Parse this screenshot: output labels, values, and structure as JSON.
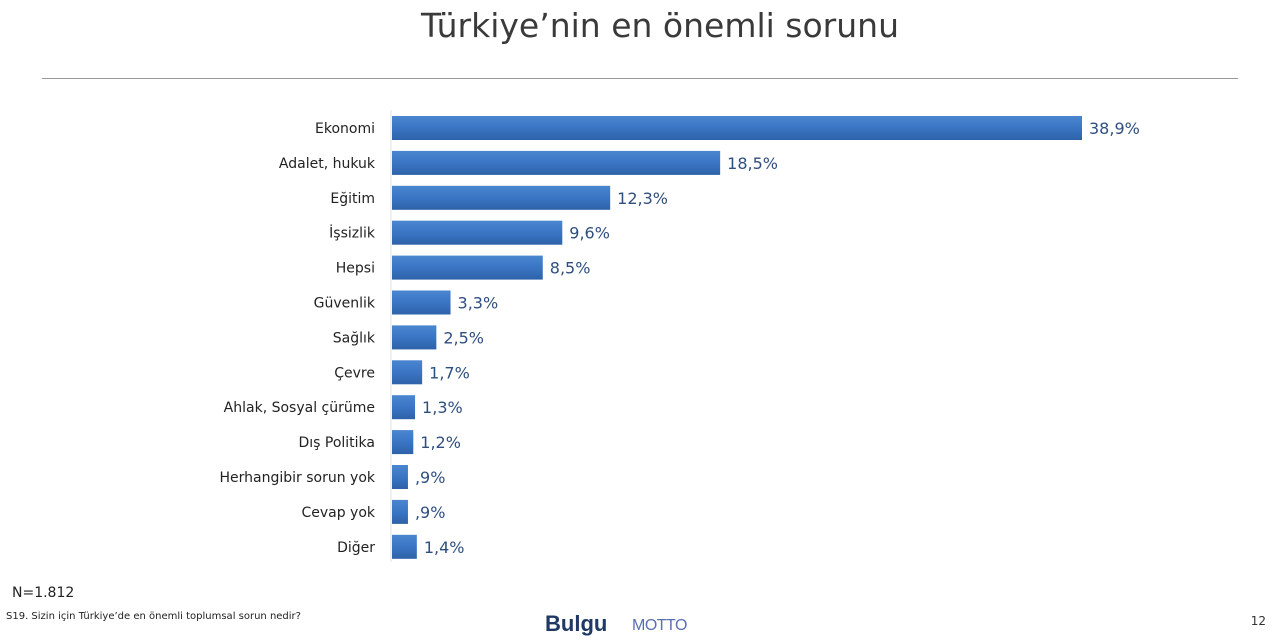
{
  "chart_data": {
    "type": "bar",
    "orientation": "horizontal",
    "title": "Türkiye’nin en önemli sorunu",
    "categories": [
      "Ekonomi",
      "Adalet, hukuk",
      "Eğitim",
      "İşsizlik",
      "Hepsi",
      "Güvenlik",
      "Sağlık",
      "Çevre",
      "Ahlak, Sosyal çürüme",
      "Dış Politika",
      "Herhangibir sorun yok",
      "Cevap yok",
      "Diğer"
    ],
    "values": [
      38.9,
      18.5,
      12.3,
      9.6,
      8.5,
      3.3,
      2.5,
      1.7,
      1.3,
      1.2,
      0.9,
      0.9,
      1.4
    ],
    "data_labels": [
      "38,9%",
      "18,5%",
      "12,3%",
      "9,6%",
      "8,5%",
      "3,3%",
      "2,5%",
      "1,7%",
      "1,3%",
      "1,2%",
      ",9%",
      ",9%",
      "1,4%"
    ],
    "xlabel": "",
    "ylabel": "",
    "xlim": [
      0,
      40
    ],
    "grid": false,
    "bar_color": "#3a75c4"
  },
  "footer": {
    "sample": "N=1.812",
    "question": "S19. Sizin için Türkiye’de  en önemli toplumsal sorun nedir?",
    "logo_bulgu": "Bulgu",
    "logo_motto": "MOTTO",
    "page_number": "12"
  }
}
